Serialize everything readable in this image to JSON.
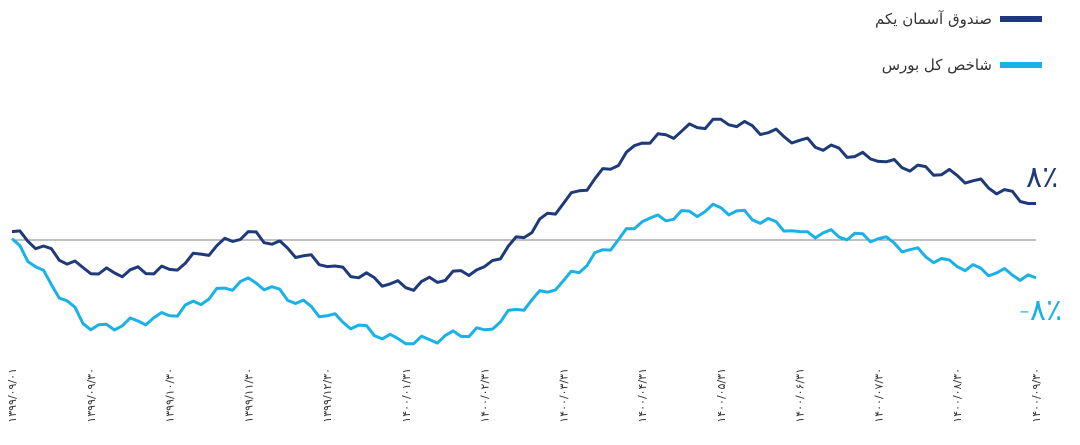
{
  "chart_data": {
    "type": "line",
    "x": [
      "۱۳۹۹/۰۹/۰۱",
      "۱۳۹۹/۰۹/۳۰",
      "۱۳۹۹/۱۰/۳۰",
      "۱۳۹۹/۱۱/۳۰",
      "۱۳۹۹/۱۲/۳۰",
      "۱۴۰۰/۰۱/۳۱",
      "۱۴۰۰/۰۲/۳۱",
      "۱۴۰۰/۰۳/۳۱",
      "۱۴۰۰/۰۴/۳۱",
      "۱۴۰۰/۰۵/۳۱",
      "۱۴۰۰/۰۶/۳۱",
      "۱۴۰۰/۰۷/۳۰",
      "۱۴۰۰/۰۸/۳۰",
      "۱۴۰۰/۰۹/۳۰"
    ],
    "series": [
      {
        "name": "صندوق آسمان یکم",
        "color": "#1f3a7a",
        "values": [
          0.5,
          -2.5,
          -2.2,
          0.5,
          -2.0,
          -3.5,
          -2.0,
          2.5,
          6.8,
          8.5,
          7.0,
          5.5,
          4.5,
          2.5
        ]
      },
      {
        "name": "شاخص کل بورس",
        "color": "#1ab2e6",
        "values": [
          0.0,
          -6.5,
          -5.5,
          -2.8,
          -5.5,
          -7.5,
          -6.5,
          -3.0,
          1.2,
          2.2,
          0.5,
          0.0,
          -2.0,
          -2.8
        ]
      }
    ],
    "ylim": [
      -12,
      16
    ],
    "baseline": 0,
    "labels": {
      "up": "۸٪",
      "down": "-۸٪"
    },
    "legend_position": "top-right",
    "grid": false
  }
}
